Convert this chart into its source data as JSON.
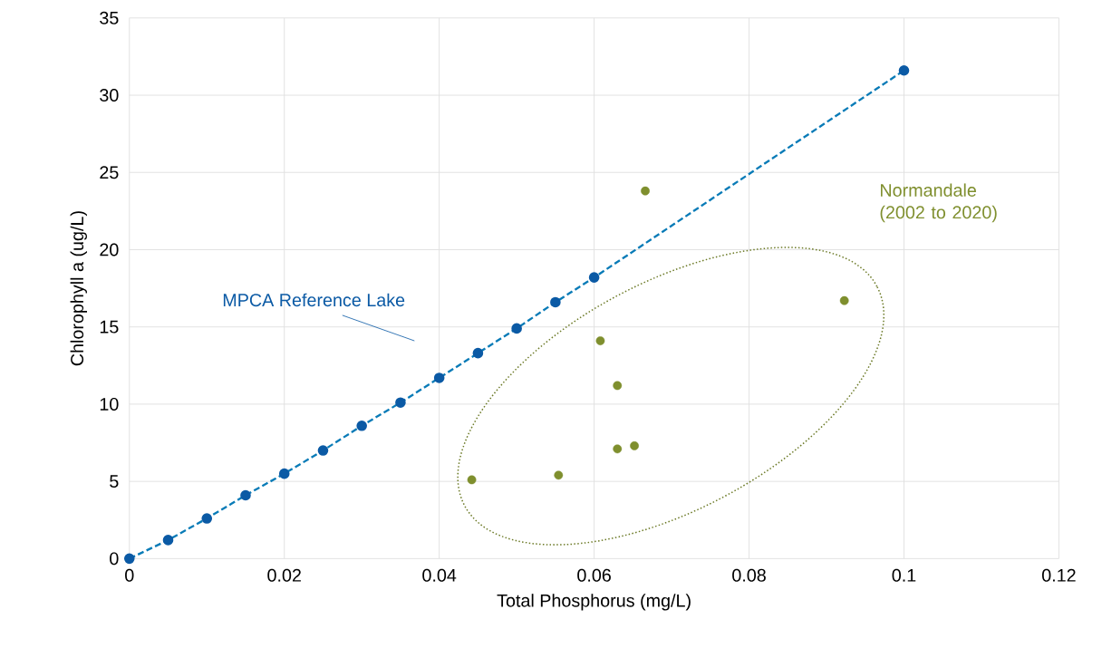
{
  "chart_data": {
    "type": "scatter",
    "xlabel": "Total Phosphorus (mg/L)",
    "ylabel": "Chlorophyll a (ug/L)",
    "xlim": [
      0,
      0.12
    ],
    "ylim": [
      0,
      35
    ],
    "xticks": [
      0,
      0.02,
      0.04,
      0.06,
      0.08,
      0.1,
      0.12
    ],
    "yticks": [
      0,
      5,
      10,
      15,
      20,
      25,
      30,
      35
    ],
    "grid": true,
    "marker": "circle",
    "series": [
      {
        "name": "MPCA Reference Lake",
        "type": "line",
        "line_style": "dashed",
        "color": "#0b5aa5",
        "x": [
          0,
          0.005,
          0.01,
          0.015,
          0.02,
          0.025,
          0.03,
          0.035,
          0.04,
          0.045,
          0.05,
          0.055,
          0.06,
          0.1
        ],
        "values": [
          0,
          1.2,
          2.6,
          4.1,
          5.5,
          7.0,
          8.6,
          10.1,
          11.7,
          13.3,
          14.9,
          16.6,
          18.2,
          31.6
        ]
      },
      {
        "name": "Normandale (2002 to 2020)",
        "color": "#7f8f2e",
        "x": [
          0.0442,
          0.0554,
          0.0608,
          0.063,
          0.063,
          0.0652,
          0.0666,
          0.0923
        ],
        "values": [
          5.1,
          5.4,
          14.1,
          11.2,
          7.1,
          7.3,
          23.8,
          16.7
        ]
      }
    ]
  }
}
